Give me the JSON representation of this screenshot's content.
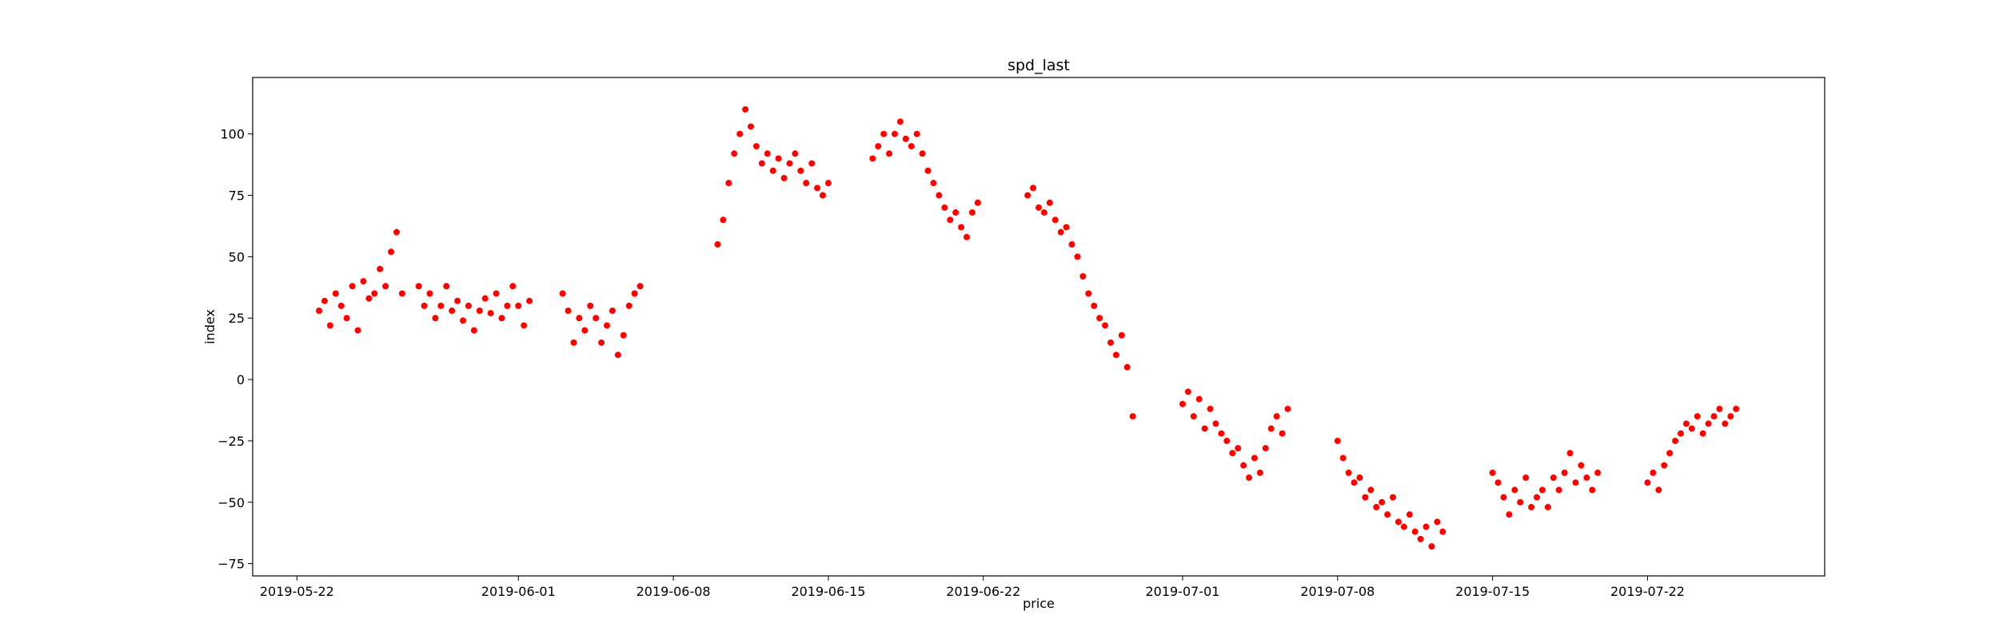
{
  "chart_data": {
    "type": "scatter",
    "title": "spd_last",
    "xlabel": "price",
    "ylabel": "index",
    "x_axis_type": "date",
    "xlim": [
      "2019-05-20",
      "2019-07-30"
    ],
    "ylim": [
      -80,
      123
    ],
    "x_ticks": [
      "2019-05-22",
      "2019-06-01",
      "2019-06-08",
      "2019-06-15",
      "2019-06-22",
      "2019-07-01",
      "2019-07-08",
      "2019-07-15",
      "2019-07-22"
    ],
    "y_ticks": [
      -75,
      -50,
      -25,
      0,
      25,
      50,
      75,
      100
    ],
    "grid": false,
    "legend": "none",
    "marker_color": "#ff0000",
    "series": [
      {
        "points": [
          [
            "2019-05-23",
            28
          ],
          [
            "2019-05-23.25",
            32
          ],
          [
            "2019-05-23.5",
            22
          ],
          [
            "2019-05-23.75",
            35
          ],
          [
            "2019-05-24",
            30
          ],
          [
            "2019-05-24.25",
            25
          ],
          [
            "2019-05-24.5",
            38
          ],
          [
            "2019-05-24.75",
            20
          ],
          [
            "2019-05-25",
            40
          ],
          [
            "2019-05-25.25",
            33
          ],
          [
            "2019-05-25.5",
            35
          ],
          [
            "2019-05-25.75",
            45
          ],
          [
            "2019-05-26",
            38
          ],
          [
            "2019-05-26.25",
            52
          ],
          [
            "2019-05-26.5",
            60
          ],
          [
            "2019-05-26.75",
            35
          ],
          [
            "2019-05-27.5",
            38
          ],
          [
            "2019-05-27.75",
            30
          ],
          [
            "2019-05-28",
            35
          ],
          [
            "2019-05-28.25",
            25
          ],
          [
            "2019-05-28.5",
            30
          ],
          [
            "2019-05-28.75",
            38
          ],
          [
            "2019-05-29",
            28
          ],
          [
            "2019-05-29.25",
            32
          ],
          [
            "2019-05-29.5",
            24
          ],
          [
            "2019-05-29.75",
            30
          ],
          [
            "2019-05-30",
            20
          ],
          [
            "2019-05-30.25",
            28
          ],
          [
            "2019-05-30.5",
            33
          ],
          [
            "2019-05-30.75",
            27
          ],
          [
            "2019-05-31",
            35
          ],
          [
            "2019-05-31.25",
            25
          ],
          [
            "2019-05-31.5",
            30
          ],
          [
            "2019-05-31.75",
            38
          ],
          [
            "2019-06-01",
            30
          ],
          [
            "2019-06-01.25",
            22
          ],
          [
            "2019-06-01.5",
            32
          ],
          [
            "2019-06-03",
            35
          ],
          [
            "2019-06-03.25",
            28
          ],
          [
            "2019-06-03.5",
            15
          ],
          [
            "2019-06-03.75",
            25
          ],
          [
            "2019-06-04",
            20
          ],
          [
            "2019-06-04.25",
            30
          ],
          [
            "2019-06-04.5",
            25
          ],
          [
            "2019-06-04.75",
            15
          ],
          [
            "2019-06-05",
            22
          ],
          [
            "2019-06-05.25",
            28
          ],
          [
            "2019-06-05.5",
            10
          ],
          [
            "2019-06-05.75",
            18
          ],
          [
            "2019-06-06",
            30
          ],
          [
            "2019-06-06.25",
            35
          ],
          [
            "2019-06-06.5",
            38
          ],
          [
            "2019-06-10",
            55
          ],
          [
            "2019-06-10.25",
            65
          ],
          [
            "2019-06-10.5",
            80
          ],
          [
            "2019-06-10.75",
            92
          ],
          [
            "2019-06-11",
            100
          ],
          [
            "2019-06-11.25",
            110
          ],
          [
            "2019-06-11.5",
            103
          ],
          [
            "2019-06-11.75",
            95
          ],
          [
            "2019-06-12",
            88
          ],
          [
            "2019-06-12.25",
            92
          ],
          [
            "2019-06-12.5",
            85
          ],
          [
            "2019-06-12.75",
            90
          ],
          [
            "2019-06-13",
            82
          ],
          [
            "2019-06-13.25",
            88
          ],
          [
            "2019-06-13.5",
            92
          ],
          [
            "2019-06-13.75",
            85
          ],
          [
            "2019-06-14",
            80
          ],
          [
            "2019-06-14.25",
            88
          ],
          [
            "2019-06-14.5",
            78
          ],
          [
            "2019-06-14.75",
            75
          ],
          [
            "2019-06-15",
            80
          ],
          [
            "2019-06-17",
            90
          ],
          [
            "2019-06-17.25",
            95
          ],
          [
            "2019-06-17.5",
            100
          ],
          [
            "2019-06-17.75",
            92
          ],
          [
            "2019-06-18",
            100
          ],
          [
            "2019-06-18.25",
            105
          ],
          [
            "2019-06-18.5",
            98
          ],
          [
            "2019-06-18.75",
            95
          ],
          [
            "2019-06-19",
            100
          ],
          [
            "2019-06-19.25",
            92
          ],
          [
            "2019-06-19.5",
            85
          ],
          [
            "2019-06-19.75",
            80
          ],
          [
            "2019-06-20",
            75
          ],
          [
            "2019-06-20.25",
            70
          ],
          [
            "2019-06-20.5",
            65
          ],
          [
            "2019-06-20.75",
            68
          ],
          [
            "2019-06-21",
            62
          ],
          [
            "2019-06-21.25",
            58
          ],
          [
            "2019-06-21.5",
            68
          ],
          [
            "2019-06-21.75",
            72
          ],
          [
            "2019-06-24",
            75
          ],
          [
            "2019-06-24.25",
            78
          ],
          [
            "2019-06-24.5",
            70
          ],
          [
            "2019-06-24.75",
            68
          ],
          [
            "2019-06-25",
            72
          ],
          [
            "2019-06-25.25",
            65
          ],
          [
            "2019-06-25.5",
            60
          ],
          [
            "2019-06-25.75",
            62
          ],
          [
            "2019-06-26",
            55
          ],
          [
            "2019-06-26.25",
            50
          ],
          [
            "2019-06-26.5",
            42
          ],
          [
            "2019-06-26.75",
            35
          ],
          [
            "2019-06-27",
            30
          ],
          [
            "2019-06-27.25",
            25
          ],
          [
            "2019-06-27.5",
            22
          ],
          [
            "2019-06-27.75",
            15
          ],
          [
            "2019-06-28",
            10
          ],
          [
            "2019-06-28.25",
            18
          ],
          [
            "2019-06-28.5",
            5
          ],
          [
            "2019-06-28.75",
            -15
          ],
          [
            "2019-07-01",
            -10
          ],
          [
            "2019-07-01.25",
            -5
          ],
          [
            "2019-07-01.5",
            -15
          ],
          [
            "2019-07-01.75",
            -8
          ],
          [
            "2019-07-02",
            -20
          ],
          [
            "2019-07-02.25",
            -12
          ],
          [
            "2019-07-02.5",
            -18
          ],
          [
            "2019-07-02.75",
            -22
          ],
          [
            "2019-07-03",
            -25
          ],
          [
            "2019-07-03.25",
            -30
          ],
          [
            "2019-07-03.5",
            -28
          ],
          [
            "2019-07-03.75",
            -35
          ],
          [
            "2019-07-04",
            -40
          ],
          [
            "2019-07-04.25",
            -32
          ],
          [
            "2019-07-04.5",
            -38
          ],
          [
            "2019-07-04.75",
            -28
          ],
          [
            "2019-07-05",
            -20
          ],
          [
            "2019-07-05.25",
            -15
          ],
          [
            "2019-07-05.5",
            -22
          ],
          [
            "2019-07-05.75",
            -12
          ],
          [
            "2019-07-08",
            -25
          ],
          [
            "2019-07-08.25",
            -32
          ],
          [
            "2019-07-08.5",
            -38
          ],
          [
            "2019-07-08.75",
            -42
          ],
          [
            "2019-07-09",
            -40
          ],
          [
            "2019-07-09.25",
            -48
          ],
          [
            "2019-07-09.5",
            -45
          ],
          [
            "2019-07-09.75",
            -52
          ],
          [
            "2019-07-10",
            -50
          ],
          [
            "2019-07-10.25",
            -55
          ],
          [
            "2019-07-10.5",
            -48
          ],
          [
            "2019-07-10.75",
            -58
          ],
          [
            "2019-07-11",
            -60
          ],
          [
            "2019-07-11.25",
            -55
          ],
          [
            "2019-07-11.5",
            -62
          ],
          [
            "2019-07-11.75",
            -65
          ],
          [
            "2019-07-12",
            -60
          ],
          [
            "2019-07-12.25",
            -68
          ],
          [
            "2019-07-12.5",
            -58
          ],
          [
            "2019-07-12.75",
            -62
          ],
          [
            "2019-07-15",
            -38
          ],
          [
            "2019-07-15.25",
            -42
          ],
          [
            "2019-07-15.5",
            -48
          ],
          [
            "2019-07-15.75",
            -55
          ],
          [
            "2019-07-16",
            -45
          ],
          [
            "2019-07-16.25",
            -50
          ],
          [
            "2019-07-16.5",
            -40
          ],
          [
            "2019-07-16.75",
            -52
          ],
          [
            "2019-07-17",
            -48
          ],
          [
            "2019-07-17.25",
            -45
          ],
          [
            "2019-07-17.5",
            -52
          ],
          [
            "2019-07-17.75",
            -40
          ],
          [
            "2019-07-18",
            -45
          ],
          [
            "2019-07-18.25",
            -38
          ],
          [
            "2019-07-18.5",
            -30
          ],
          [
            "2019-07-18.75",
            -42
          ],
          [
            "2019-07-19",
            -35
          ],
          [
            "2019-07-19.25",
            -40
          ],
          [
            "2019-07-19.5",
            -45
          ],
          [
            "2019-07-19.75",
            -38
          ],
          [
            "2019-07-22",
            -42
          ],
          [
            "2019-07-22.25",
            -38
          ],
          [
            "2019-07-22.5",
            -45
          ],
          [
            "2019-07-22.75",
            -35
          ],
          [
            "2019-07-23",
            -30
          ],
          [
            "2019-07-23.25",
            -25
          ],
          [
            "2019-07-23.5",
            -22
          ],
          [
            "2019-07-23.75",
            -18
          ],
          [
            "2019-07-24",
            -20
          ],
          [
            "2019-07-24.25",
            -15
          ],
          [
            "2019-07-24.5",
            -22
          ],
          [
            "2019-07-24.75",
            -18
          ],
          [
            "2019-07-25",
            -15
          ],
          [
            "2019-07-25.25",
            -12
          ],
          [
            "2019-07-25.5",
            -18
          ],
          [
            "2019-07-25.75",
            -15
          ],
          [
            "2019-07-26",
            -12
          ]
        ]
      }
    ]
  }
}
